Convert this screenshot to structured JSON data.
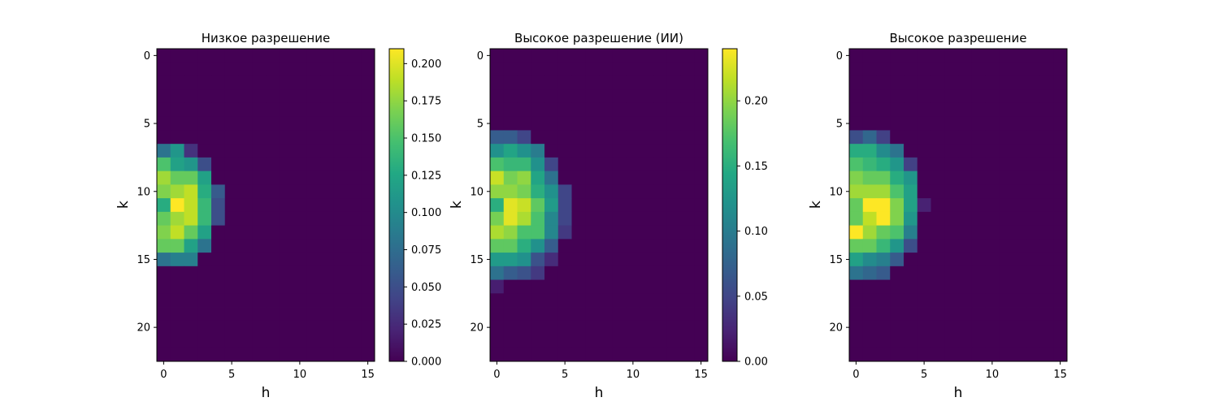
{
  "figure": {
    "background": "#ffffff",
    "colormap": "viridis"
  },
  "chart_data": [
    {
      "type": "heatmap",
      "title": "Низкое разрешение",
      "xlabel": "h",
      "ylabel": "k",
      "xlim": [
        -0.5,
        15.5
      ],
      "ylim": [
        22.5,
        -0.5
      ],
      "xticks": [
        "0",
        "5",
        "10",
        "15"
      ],
      "yticks": [
        "0",
        "5",
        "10",
        "15",
        "20"
      ],
      "vmin": 0,
      "vmax": 0.21,
      "colorbar": {
        "ticks": [
          "0.000",
          "0.025",
          "0.050",
          "0.075",
          "0.100",
          "0.125",
          "0.150",
          "0.175",
          "0.200"
        ]
      },
      "values": [
        [
          0,
          0,
          0,
          0,
          0,
          0,
          0,
          0,
          0,
          0,
          0,
          0,
          0,
          0,
          0,
          0
        ],
        [
          0,
          0,
          0,
          0,
          0,
          0,
          0,
          0,
          0,
          0,
          0,
          0,
          0,
          0,
          0,
          0
        ],
        [
          0,
          0,
          0,
          0,
          0,
          0,
          0,
          0,
          0,
          0,
          0,
          0,
          0,
          0,
          0,
          0
        ],
        [
          0,
          0,
          0,
          0,
          0,
          0,
          0,
          0,
          0,
          0,
          0,
          0,
          0,
          0,
          0,
          0
        ],
        [
          0,
          0,
          0,
          0,
          0,
          0,
          0,
          0,
          0,
          0,
          0,
          0,
          0,
          0,
          0,
          0
        ],
        [
          0,
          0,
          0,
          0,
          0,
          0,
          0,
          0,
          0,
          0,
          0,
          0,
          0,
          0,
          0,
          0
        ],
        [
          0,
          0,
          0,
          0,
          0,
          0,
          0,
          0,
          0,
          0,
          0,
          0,
          0,
          0,
          0,
          0
        ],
        [
          0.08,
          0.11,
          0.03,
          0,
          0,
          0,
          0,
          0,
          0,
          0,
          0,
          0,
          0,
          0,
          0,
          0
        ],
        [
          0.15,
          0.12,
          0.11,
          0.05,
          0,
          0,
          0,
          0,
          0,
          0,
          0,
          0,
          0,
          0,
          0,
          0
        ],
        [
          0.18,
          0.16,
          0.16,
          0.12,
          0,
          0,
          0,
          0,
          0,
          0,
          0,
          0,
          0,
          0,
          0,
          0
        ],
        [
          0.17,
          0.18,
          0.19,
          0.13,
          0.06,
          0,
          0,
          0,
          0,
          0,
          0,
          0,
          0,
          0,
          0,
          0
        ],
        [
          0.13,
          0.21,
          0.19,
          0.14,
          0.05,
          0,
          0,
          0,
          0,
          0,
          0,
          0,
          0,
          0,
          0,
          0
        ],
        [
          0.16,
          0.18,
          0.19,
          0.14,
          0.05,
          0,
          0,
          0,
          0,
          0,
          0,
          0,
          0,
          0,
          0,
          0
        ],
        [
          0.17,
          0.19,
          0.16,
          0.12,
          0,
          0,
          0,
          0,
          0,
          0,
          0,
          0,
          0,
          0,
          0,
          0
        ],
        [
          0.16,
          0.16,
          0.12,
          0.08,
          0,
          0,
          0,
          0,
          0,
          0,
          0,
          0,
          0,
          0,
          0,
          0
        ],
        [
          0.08,
          0.09,
          0.09,
          0,
          0,
          0,
          0,
          0,
          0,
          0,
          0,
          0,
          0,
          0,
          0,
          0
        ],
        [
          0,
          0,
          0,
          0,
          0,
          0,
          0,
          0,
          0,
          0,
          0,
          0,
          0,
          0,
          0,
          0
        ],
        [
          0,
          0,
          0,
          0,
          0,
          0,
          0,
          0,
          0,
          0,
          0,
          0,
          0,
          0,
          0,
          0
        ],
        [
          0,
          0,
          0,
          0,
          0,
          0,
          0,
          0,
          0,
          0,
          0,
          0,
          0,
          0,
          0,
          0
        ],
        [
          0,
          0,
          0,
          0,
          0,
          0,
          0,
          0,
          0,
          0,
          0,
          0,
          0,
          0,
          0,
          0
        ],
        [
          0,
          0,
          0,
          0,
          0,
          0,
          0,
          0,
          0,
          0,
          0,
          0,
          0,
          0,
          0,
          0
        ],
        [
          0,
          0,
          0,
          0,
          0,
          0,
          0,
          0,
          0,
          0,
          0,
          0,
          0,
          0,
          0,
          0
        ],
        [
          0,
          0,
          0,
          0,
          0,
          0,
          0,
          0,
          0,
          0,
          0,
          0,
          0,
          0,
          0,
          0
        ]
      ]
    },
    {
      "type": "heatmap",
      "title": "Высокое разрешение (ИИ)",
      "xlabel": "h",
      "ylabel": "k",
      "xlim": [
        -0.5,
        15.5
      ],
      "ylim": [
        22.5,
        -0.5
      ],
      "xticks": [
        "0",
        "5",
        "10",
        "15"
      ],
      "yticks": [
        "0",
        "5",
        "10",
        "15",
        "20"
      ],
      "vmin": 0,
      "vmax": 0.24,
      "colorbar": {
        "ticks": [
          "0.00",
          "0.05",
          "0.10",
          "0.15",
          "0.20"
        ]
      },
      "values": [
        [
          0,
          0,
          0,
          0,
          0,
          0,
          0,
          0,
          0,
          0,
          0,
          0,
          0,
          0,
          0,
          0
        ],
        [
          0,
          0,
          0,
          0,
          0,
          0,
          0,
          0,
          0,
          0,
          0,
          0,
          0,
          0,
          0,
          0
        ],
        [
          0,
          0,
          0,
          0,
          0,
          0,
          0,
          0,
          0,
          0,
          0,
          0,
          0,
          0,
          0,
          0
        ],
        [
          0,
          0,
          0,
          0,
          0,
          0,
          0,
          0,
          0,
          0,
          0,
          0,
          0,
          0,
          0,
          0
        ],
        [
          0,
          0,
          0,
          0,
          0,
          0,
          0,
          0,
          0,
          0,
          0,
          0,
          0,
          0,
          0,
          0
        ],
        [
          0,
          0,
          0,
          0,
          0,
          0,
          0,
          0,
          0,
          0,
          0,
          0,
          0,
          0,
          0,
          0
        ],
        [
          0.07,
          0.07,
          0.05,
          0,
          0,
          0,
          0,
          0,
          0,
          0,
          0,
          0,
          0,
          0,
          0,
          0
        ],
        [
          0.12,
          0.14,
          0.12,
          0.1,
          0,
          0,
          0,
          0,
          0,
          0,
          0,
          0,
          0,
          0,
          0,
          0
        ],
        [
          0.17,
          0.16,
          0.16,
          0.12,
          0.05,
          0,
          0,
          0,
          0,
          0,
          0,
          0,
          0,
          0,
          0,
          0
        ],
        [
          0.22,
          0.19,
          0.2,
          0.14,
          0.09,
          0,
          0,
          0,
          0,
          0,
          0,
          0,
          0,
          0,
          0,
          0
        ],
        [
          0.2,
          0.2,
          0.19,
          0.15,
          0.12,
          0.05,
          0,
          0,
          0,
          0,
          0,
          0,
          0,
          0,
          0,
          0
        ],
        [
          0.15,
          0.23,
          0.22,
          0.18,
          0.13,
          0.05,
          0,
          0,
          0,
          0,
          0,
          0,
          0,
          0,
          0,
          0
        ],
        [
          0.19,
          0.23,
          0.21,
          0.17,
          0.11,
          0.05,
          0,
          0,
          0,
          0,
          0,
          0,
          0,
          0,
          0,
          0
        ],
        [
          0.21,
          0.2,
          0.17,
          0.17,
          0.11,
          0.04,
          0,
          0,
          0,
          0,
          0,
          0,
          0,
          0,
          0,
          0
        ],
        [
          0.18,
          0.18,
          0.15,
          0.12,
          0.07,
          0,
          0,
          0,
          0,
          0,
          0,
          0,
          0,
          0,
          0,
          0
        ],
        [
          0.13,
          0.13,
          0.12,
          0.06,
          0.03,
          0,
          0,
          0,
          0,
          0,
          0,
          0,
          0,
          0,
          0,
          0
        ],
        [
          0.09,
          0.07,
          0.06,
          0.04,
          0,
          0,
          0,
          0,
          0,
          0,
          0,
          0,
          0,
          0,
          0,
          0
        ],
        [
          0.02,
          0,
          0,
          0,
          0,
          0,
          0,
          0,
          0,
          0,
          0,
          0,
          0,
          0,
          0,
          0
        ],
        [
          0,
          0,
          0,
          0,
          0,
          0,
          0,
          0,
          0,
          0,
          0,
          0,
          0,
          0,
          0,
          0
        ],
        [
          0,
          0,
          0,
          0,
          0,
          0,
          0,
          0,
          0,
          0,
          0,
          0,
          0,
          0,
          0,
          0
        ],
        [
          0,
          0,
          0,
          0,
          0,
          0,
          0,
          0,
          0,
          0,
          0,
          0,
          0,
          0,
          0,
          0
        ],
        [
          0,
          0,
          0,
          0,
          0,
          0,
          0,
          0,
          0,
          0,
          0,
          0,
          0,
          0,
          0,
          0
        ],
        [
          0,
          0,
          0,
          0,
          0,
          0,
          0,
          0,
          0,
          0,
          0,
          0,
          0,
          0,
          0,
          0
        ]
      ]
    },
    {
      "type": "heatmap",
      "title": "Высокое разрешение",
      "xlabel": "h",
      "ylabel": "k",
      "xlim": [
        -0.5,
        15.5
      ],
      "ylim": [
        22.5,
        -0.5
      ],
      "xticks": [
        "0",
        "5",
        "10",
        "15"
      ],
      "yticks": [
        "0",
        "5",
        "10",
        "15",
        "20"
      ],
      "vmin": 0,
      "vmax": 0.21,
      "values": [
        [
          0,
          0,
          0,
          0,
          0,
          0,
          0,
          0,
          0,
          0,
          0,
          0,
          0,
          0,
          0,
          0
        ],
        [
          0,
          0,
          0,
          0,
          0,
          0,
          0,
          0,
          0,
          0,
          0,
          0,
          0,
          0,
          0,
          0
        ],
        [
          0,
          0,
          0,
          0,
          0,
          0,
          0,
          0,
          0,
          0,
          0,
          0,
          0,
          0,
          0,
          0
        ],
        [
          0,
          0,
          0,
          0,
          0,
          0,
          0,
          0,
          0,
          0,
          0,
          0,
          0,
          0,
          0,
          0
        ],
        [
          0,
          0,
          0,
          0,
          0,
          0,
          0,
          0,
          0,
          0,
          0,
          0,
          0,
          0,
          0,
          0
        ],
        [
          0,
          0,
          0,
          0,
          0,
          0,
          0,
          0,
          0,
          0,
          0,
          0,
          0,
          0,
          0,
          0
        ],
        [
          0.05,
          0.07,
          0.04,
          0,
          0,
          0,
          0,
          0,
          0,
          0,
          0,
          0,
          0,
          0,
          0,
          0
        ],
        [
          0.13,
          0.13,
          0.1,
          0.08,
          0,
          0,
          0,
          0,
          0,
          0,
          0,
          0,
          0,
          0,
          0,
          0
        ],
        [
          0.15,
          0.14,
          0.13,
          0.11,
          0.04,
          0,
          0,
          0,
          0,
          0,
          0,
          0,
          0,
          0,
          0,
          0
        ],
        [
          0.17,
          0.16,
          0.16,
          0.13,
          0.11,
          0,
          0,
          0,
          0,
          0,
          0,
          0,
          0,
          0,
          0,
          0
        ],
        [
          0.18,
          0.18,
          0.18,
          0.15,
          0.12,
          0,
          0,
          0,
          0,
          0,
          0,
          0,
          0,
          0,
          0,
          0
        ],
        [
          0.16,
          0.21,
          0.21,
          0.17,
          0.12,
          0.02,
          0,
          0,
          0,
          0,
          0,
          0,
          0,
          0,
          0,
          0
        ],
        [
          0.16,
          0.19,
          0.21,
          0.17,
          0.11,
          0,
          0,
          0,
          0,
          0,
          0,
          0,
          0,
          0,
          0,
          0
        ],
        [
          0.21,
          0.18,
          0.16,
          0.15,
          0.09,
          0,
          0,
          0,
          0,
          0,
          0,
          0,
          0,
          0,
          0,
          0
        ],
        [
          0.16,
          0.16,
          0.14,
          0.11,
          0.05,
          0,
          0,
          0,
          0,
          0,
          0,
          0,
          0,
          0,
          0,
          0
        ],
        [
          0.12,
          0.1,
          0.09,
          0.06,
          0,
          0,
          0,
          0,
          0,
          0,
          0,
          0,
          0,
          0,
          0,
          0
        ],
        [
          0.08,
          0.07,
          0.06,
          0,
          0,
          0,
          0,
          0,
          0,
          0,
          0,
          0,
          0,
          0,
          0,
          0
        ],
        [
          0,
          0,
          0,
          0,
          0,
          0,
          0,
          0,
          0,
          0,
          0,
          0,
          0,
          0,
          0,
          0
        ],
        [
          0,
          0,
          0,
          0,
          0,
          0,
          0,
          0,
          0,
          0,
          0,
          0,
          0,
          0,
          0,
          0
        ],
        [
          0,
          0,
          0,
          0,
          0,
          0,
          0,
          0,
          0,
          0,
          0,
          0,
          0,
          0,
          0,
          0
        ],
        [
          0,
          0,
          0,
          0,
          0,
          0,
          0,
          0,
          0,
          0,
          0,
          0,
          0,
          0,
          0,
          0
        ],
        [
          0,
          0,
          0,
          0,
          0,
          0,
          0,
          0,
          0,
          0,
          0,
          0,
          0,
          0,
          0,
          0
        ],
        [
          0,
          0,
          0,
          0,
          0,
          0,
          0,
          0,
          0,
          0,
          0,
          0,
          0,
          0,
          0,
          0
        ]
      ]
    }
  ]
}
